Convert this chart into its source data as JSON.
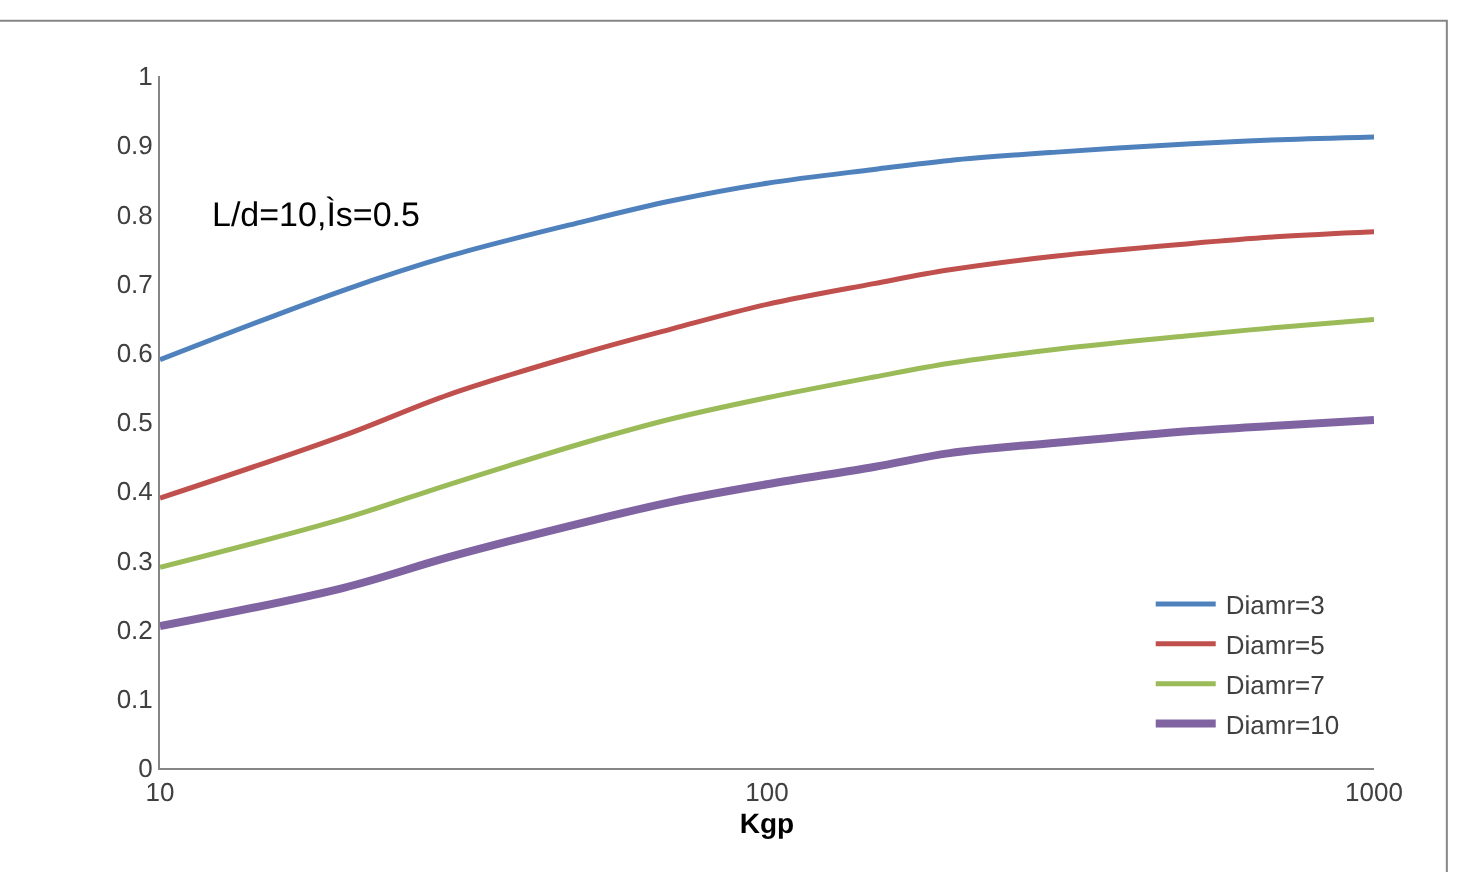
{
  "chart_data": {
    "type": "line",
    "xlabel": "Kgp",
    "log": "x",
    "x": [
      10,
      20,
      30,
      50,
      70,
      100,
      150,
      200,
      300,
      500,
      700,
      1000
    ],
    "series": [
      {
        "name": "Diamr=3",
        "color": "#4f81bd",
        "values": [
          0.59,
          0.69,
          0.74,
          0.79,
          0.82,
          0.845,
          0.865,
          0.878,
          0.89,
          0.902,
          0.908,
          0.912
        ]
      },
      {
        "name": "Diamr=5",
        "color": "#c0504d",
        "values": [
          0.39,
          0.48,
          0.54,
          0.6,
          0.635,
          0.67,
          0.7,
          0.72,
          0.74,
          0.758,
          0.768,
          0.775
        ]
      },
      {
        "name": "Diamr=7",
        "color": "#9bbb59",
        "values": [
          0.29,
          0.36,
          0.41,
          0.47,
          0.505,
          0.535,
          0.565,
          0.585,
          0.605,
          0.625,
          0.637,
          0.648
        ]
      },
      {
        "name": "Diamr=10",
        "color": "#8064a2",
        "values": [
          0.205,
          0.26,
          0.305,
          0.355,
          0.385,
          0.41,
          0.435,
          0.455,
          0.47,
          0.487,
          0.495,
          0.503
        ]
      }
    ],
    "xlim": [
      10,
      1000
    ],
    "xticks": [
      10,
      100,
      1000
    ],
    "ylim": [
      0,
      1
    ],
    "yticks": [
      0,
      0.1,
      0.2,
      0.3,
      0.4,
      0.5,
      0.6,
      0.7,
      0.8,
      0.9,
      1
    ],
    "annotations": [
      "L/d=10,Ìs=0.5"
    ],
    "legend": "bottom right",
    "marker": "none",
    "line_style": "solid"
  }
}
